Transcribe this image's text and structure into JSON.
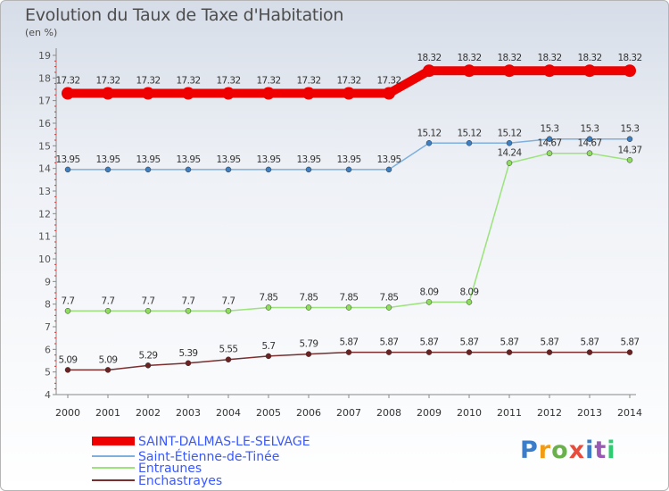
{
  "title": "Evolution du Taux de Taxe d'Habitation",
  "unit": "(en %)",
  "logo": {
    "text": "Proxiti",
    "colors": [
      "#3b7dc8",
      "#f39c12",
      "#6ab04c",
      "#e74c3c",
      "#3b7dc8",
      "#9b59b6",
      "#2ecc71"
    ]
  },
  "chart_data": {
    "type": "line",
    "x": [
      "2000",
      "2001",
      "2002",
      "2003",
      "2004",
      "2005",
      "2006",
      "2007",
      "2008",
      "2009",
      "2010",
      "2011",
      "2012",
      "2013",
      "2014"
    ],
    "ylim": [
      4,
      19
    ],
    "yticks": [
      4,
      5,
      6,
      7,
      8,
      9,
      10,
      11,
      12,
      13,
      14,
      15,
      16,
      17,
      18,
      19
    ],
    "grid": false,
    "legend_position": "bottom-left",
    "series": [
      {
        "name": "SAINT-DALMAS-LE-SELVAGE",
        "color": "#ee0000",
        "marker": "#ee0000",
        "labels": [
          "17.32",
          "17.32",
          "17.32",
          "17.32",
          "17.32",
          "17.32",
          "17.32",
          "17.32",
          "17.32",
          "18.32",
          "18.32",
          "18.32",
          "18.32",
          "18.32",
          "18.32"
        ],
        "values": [
          17.32,
          17.32,
          17.32,
          17.32,
          17.32,
          17.32,
          17.32,
          17.32,
          17.32,
          18.32,
          18.32,
          18.32,
          18.32,
          18.32,
          18.32
        ]
      },
      {
        "name": "Saint-Étienne-de-Tinée",
        "color": "#7fb0dd",
        "marker": "#3d7fc1",
        "labels": [
          "13.95",
          "13.95",
          "13.95",
          "13.95",
          "13.95",
          "13.95",
          "13.95",
          "13.95",
          "13.95",
          "15.12",
          "15.12",
          "15.12",
          "15.3",
          "15.3",
          "15.3"
        ],
        "values": [
          13.95,
          13.95,
          13.95,
          13.95,
          13.95,
          13.95,
          13.95,
          13.95,
          13.95,
          15.12,
          15.12,
          15.12,
          15.3,
          15.3,
          15.3
        ]
      },
      {
        "name": "Entraunes",
        "color": "#9be37a",
        "marker": "#8fdc5f",
        "labels": [
          "7.7",
          "7.7",
          "7.7",
          "7.7",
          "7.7",
          "7.85",
          "7.85",
          "7.85",
          "7.85",
          "8.09",
          "8.09",
          "14.24",
          "14.67",
          "14.67",
          "14.37"
        ],
        "values": [
          7.7,
          7.7,
          7.7,
          7.7,
          7.7,
          7.85,
          7.85,
          7.85,
          7.85,
          8.09,
          8.09,
          14.24,
          14.67,
          14.67,
          14.37
        ]
      },
      {
        "name": "Enchastrayes",
        "color": "#7a2e2e",
        "marker": "#6b2222",
        "labels": [
          "5.09",
          "5.09",
          "5.29",
          "5.39",
          "5.55",
          "5.7",
          "5.79",
          "5.87",
          "5.87",
          "5.87",
          "5.87",
          "5.87",
          "5.87",
          "5.87",
          "5.87"
        ],
        "values": [
          5.09,
          5.09,
          5.29,
          5.39,
          5.55,
          5.7,
          5.79,
          5.87,
          5.87,
          5.87,
          5.87,
          5.87,
          5.87,
          5.87,
          5.87
        ]
      }
    ]
  }
}
